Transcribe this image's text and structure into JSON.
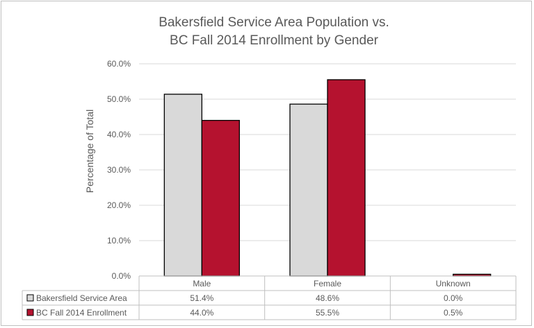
{
  "chart_data": {
    "type": "bar",
    "title_lines": [
      "Bakersfield Service Area Population vs.",
      "BC Fall 2014 Enrollment by Gender"
    ],
    "ylabel": "Percentage of Total",
    "xlabel": "",
    "categories": [
      "Male",
      "Female",
      "Unknown"
    ],
    "ylim": [
      0,
      60
    ],
    "yticks": [
      0,
      10,
      20,
      30,
      40,
      50,
      60
    ],
    "ytick_labels": [
      "0.0%",
      "10.0%",
      "20.0%",
      "30.0%",
      "40.0%",
      "50.0%",
      "60.0%"
    ],
    "grid": true,
    "legend": "data-table",
    "series": [
      {
        "name": "Bakersfield Service Area",
        "values": [
          51.4,
          48.6,
          0.0
        ],
        "labels": [
          "51.4%",
          "48.6%",
          "0.0%"
        ],
        "color": "#d9d9d9"
      },
      {
        "name": "BC Fall 2014 Enrollment",
        "values": [
          44.0,
          55.5,
          0.5
        ],
        "labels": [
          "44.0%",
          "55.5%",
          "0.5%"
        ],
        "color": "#b5122f"
      }
    ]
  }
}
